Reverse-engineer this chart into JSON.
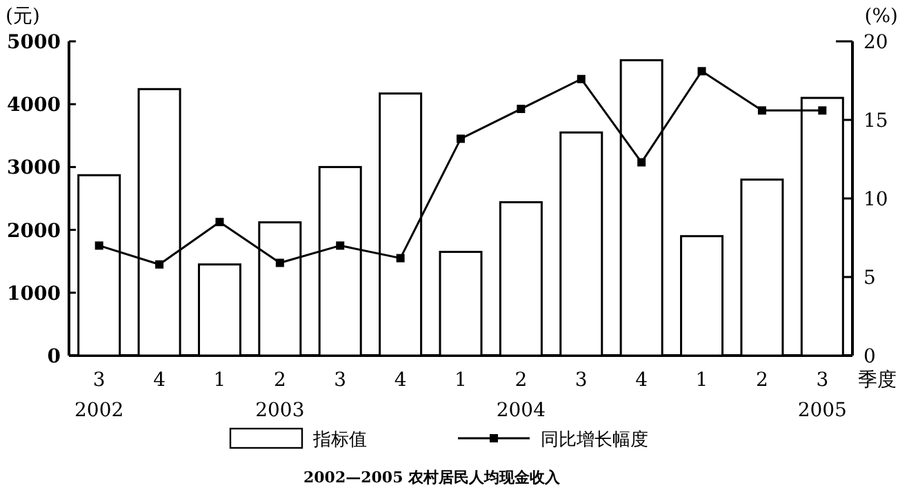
{
  "chart_data": {
    "type": "bar",
    "title": "2002—2005 农村居民人均现金收入",
    "xlabel": "季度",
    "ylabel": "(元)",
    "y2label": "(%)",
    "categories": [
      "3",
      "4",
      "1",
      "2",
      "3",
      "4",
      "1",
      "2",
      "3",
      "4",
      "1",
      "2",
      "3"
    ],
    "series": [
      {
        "name": "指标值",
        "color": "#ffffff",
        "values": [
          2870,
          4240,
          1450,
          2120,
          3000,
          4170,
          1650,
          2440,
          3550,
          4700,
          1900,
          2800,
          4100
        ]
      },
      {
        "name": "同比增长幅度",
        "type": "line",
        "axis": "y2",
        "color": "#000000",
        "marker": "square",
        "values": [
          7.0,
          5.8,
          8.5,
          5.9,
          7.0,
          6.2,
          13.8,
          15.7,
          17.6,
          12.3,
          18.1,
          15.6,
          15.6
        ]
      }
    ],
    "ylim": [
      0,
      5000
    ],
    "yticks": [
      0,
      1000,
      2000,
      3000,
      4000,
      5000
    ],
    "y2lim": [
      0,
      20
    ],
    "y2ticks": [
      0,
      5,
      10,
      15,
      20
    ],
    "grid": false,
    "legend": "bottom",
    "annotations": [
      "2002",
      "2003",
      "2004",
      "2005"
    ]
  }
}
